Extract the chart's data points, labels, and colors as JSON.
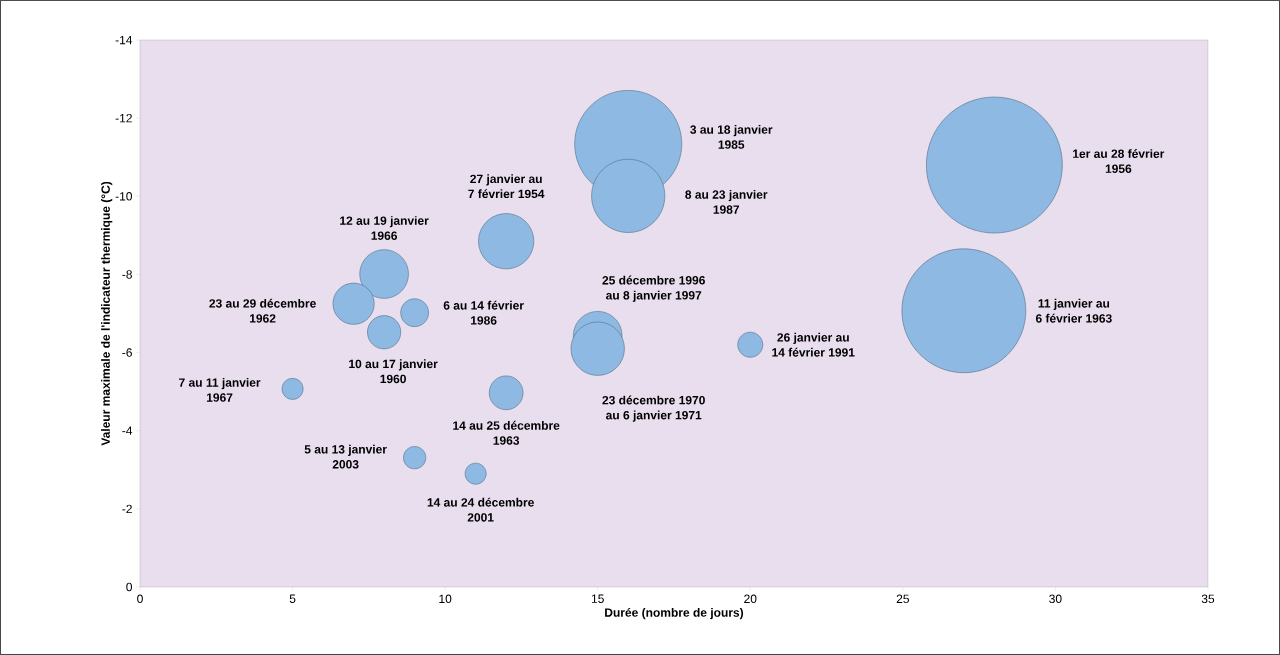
{
  "chart_data": {
    "type": "bubble",
    "xlabel": "Durée (nombre de jours)",
    "ylabel": "Valeur maximale de l'indicateur thermique (°C)",
    "xlim": [
      0,
      35
    ],
    "ylim": [
      0,
      -14
    ],
    "xticks": [
      0,
      5,
      10,
      15,
      20,
      25,
      30,
      35
    ],
    "yticks": [
      0,
      -2,
      -4,
      -6,
      -8,
      -10,
      -12,
      -14
    ],
    "color": "#8db9e2",
    "x": [
      28,
      27,
      16,
      16,
      12,
      8,
      7,
      9,
      8,
      5,
      12,
      9,
      11,
      15,
      15,
      20
    ],
    "values": [
      -10.8,
      -7.07,
      -11.34,
      -10.01,
      -8.85,
      -8.01,
      -7.25,
      -7.02,
      -6.52,
      -5.07,
      -4.97,
      -3.31,
      -2.9,
      -6.43,
      -6.1,
      -6.2
    ],
    "sizes": [
      1,
      0.83,
      0.62,
      0.29,
      0.165,
      0.128,
      0.092,
      0.042,
      0.06,
      0.024,
      0.062,
      0.027,
      0.024,
      0.128,
      0.154,
      0.034
    ],
    "annotations": [
      "1er au 28 février 1956",
      "11 janvier au 6 février 1963",
      "3 au 18 janvier 1985",
      "8 au 23 janvier 1987",
      "27 janvier au 7 février 1954",
      "12 au 19 janvier 1966",
      "23 au 29 décembre 1962",
      "6 au 14 février 1986",
      "10 au 17 janvier 1960",
      "7 au 11 janvier 1967",
      "14 au 25 décembre 1963",
      "5 au 13 janvier 2003",
      "14 au 24 décembre 2001",
      "25 décembre 1996 au 8 janvier 1997",
      "23 décembre 1970 au 6 janvier 1971",
      "26 janvier au 14 février 1991"
    ]
  }
}
